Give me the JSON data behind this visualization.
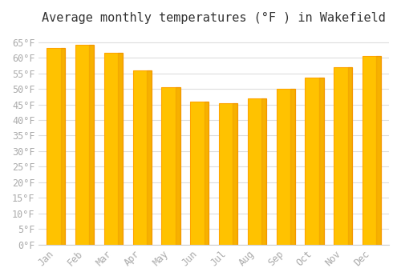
{
  "title": "Average monthly temperatures (°F ) in Wakefield",
  "months": [
    "Jan",
    "Feb",
    "Mar",
    "Apr",
    "May",
    "Jun",
    "Jul",
    "Aug",
    "Sep",
    "Oct",
    "Nov",
    "Dec"
  ],
  "values": [
    63,
    64,
    61.5,
    56,
    50.5,
    46,
    45.5,
    47,
    50,
    53.5,
    57,
    60.5
  ],
  "bar_color_main": "#FFC200",
  "bar_color_edge": "#FFA500",
  "background_color": "#FFFFFF",
  "grid_color": "#DDDDDD",
  "ylim": [
    0,
    68
  ],
  "ytick_step": 5,
  "title_fontsize": 11,
  "tick_fontsize": 8.5,
  "tick_color": "#AAAAAA",
  "font_family": "monospace"
}
